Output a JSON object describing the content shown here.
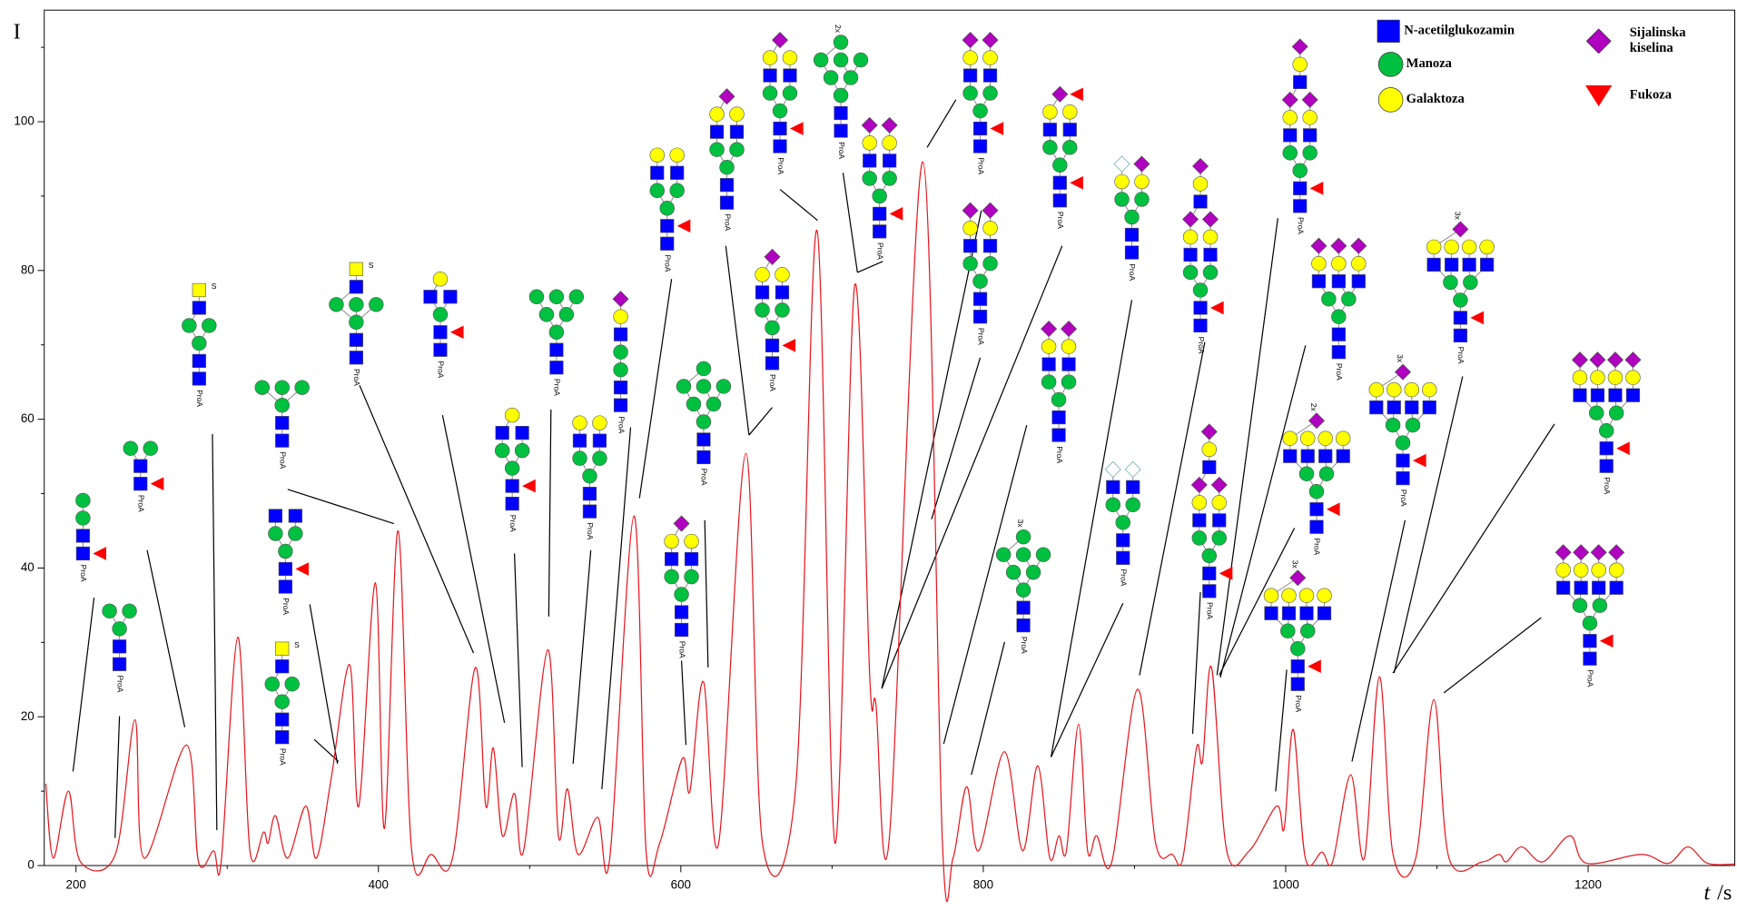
{
  "chart_data": {
    "type": "line",
    "ylabel": "I",
    "xlabel_symbol": "t",
    "xlabel_unit": "/s",
    "color": "#e8141c",
    "xlim": [
      179,
      1297
    ],
    "ylim": [
      0,
      115
    ],
    "xticks": [
      200,
      400,
      600,
      800,
      1000,
      1200
    ],
    "xminorticks": [
      300,
      500,
      700,
      900,
      1100
    ],
    "yticks": [
      0,
      20,
      40,
      60,
      80,
      100
    ],
    "yminorticks": [
      10,
      30,
      50,
      70,
      90,
      110
    ],
    "x": [
      180,
      185,
      195,
      203,
      226,
      239,
      245,
      273,
      281,
      291,
      296,
      307,
      315,
      324,
      327,
      332,
      340,
      352,
      359,
      369,
      381,
      387,
      398,
      404,
      413,
      422,
      435,
      449,
      464,
      471,
      476,
      482,
      490,
      496,
      512,
      519,
      525,
      532,
      545,
      553,
      569,
      577,
      586,
      601,
      606,
      615,
      625,
      643,
      654,
      676,
      690,
      702,
      715,
      725,
      729,
      738,
      760,
      773,
      780,
      789,
      797,
      814,
      826,
      836,
      844,
      850,
      855,
      863,
      869,
      875,
      885,
      902,
      914,
      925,
      932,
      941,
      945,
      951,
      961,
      976,
      994,
      999,
      1005,
      1013,
      1024,
      1031,
      1043,
      1052,
      1062,
      1071,
      1086,
      1098,
      1108,
      1130,
      1141,
      1146,
      1156,
      1170,
      1188,
      1199,
      1235,
      1253,
      1266,
      1279,
      1297
    ],
    "values": [
      11,
      1,
      10,
      0.5,
      1.5,
      19.6,
      1,
      16.2,
      0.5,
      2,
      0.5,
      30.7,
      2,
      4.5,
      3,
      6.7,
      1,
      8,
      1,
      12,
      27,
      8,
      38,
      5,
      45,
      2,
      1.5,
      1,
      26.6,
      8,
      15.8,
      4,
      9.7,
      2,
      29,
      4,
      10.3,
      1.5,
      6.5,
      1,
      47,
      2,
      3,
      14.4,
      10,
      24.7,
      3,
      55.4,
      3,
      10.7,
      85.4,
      3,
      78,
      25,
      21.7,
      4,
      94.6,
      3,
      1,
      10.6,
      2,
      15.3,
      2,
      13.4,
      1,
      4,
      2,
      19,
      2,
      4,
      0.5,
      23.7,
      3,
      1.5,
      1,
      15.8,
      14,
      26.6,
      2,
      2,
      8,
      5,
      18.3,
      1,
      1.8,
      0.5,
      12.2,
      1,
      25.4,
      1.5,
      1,
      22.3,
      1,
      0.5,
      1.5,
      0.5,
      2.5,
      0.5,
      4,
      0.3,
      1.5,
      0.3,
      2.5,
      0.3,
      0.2
    ],
    "legend": [
      {
        "lines": [
          "N-acetilglukozamin"
        ],
        "symbol": "square",
        "color": "#0000ff"
      },
      {
        "lines": [
          "Manoza"
        ],
        "symbol": "circle",
        "color": "#00c040"
      },
      {
        "lines": [
          "Galaktoza"
        ],
        "symbol": "circle",
        "color": "#ffff00"
      },
      {
        "lines": [
          "Sijalinska",
          "kiselina"
        ],
        "symbol": "diamond",
        "color": "#b000c0"
      },
      {
        "lines": [
          "Fukoza"
        ],
        "symbol": "triangle",
        "color": "#ff0000"
      }
    ],
    "glycan_tag": "ProA",
    "sulfate_tag": "S",
    "multiplier_labels": [
      "2x",
      "3x"
    ]
  }
}
